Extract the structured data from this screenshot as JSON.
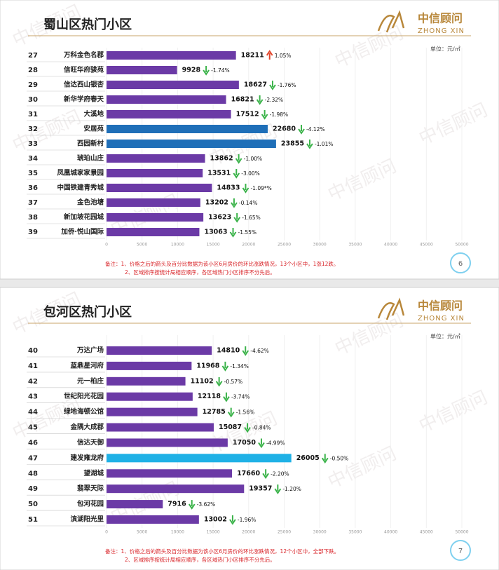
{
  "chart_data": [
    {
      "type": "bar",
      "title": "蜀山区热门小区",
      "logo": "中信顾问",
      "logo_sub": "ZHONG XIN",
      "watermark": "中信顾问",
      "unit": "单位：元/㎡",
      "ranks": [
        27,
        28,
        29,
        30,
        31,
        32,
        33,
        34,
        35,
        36,
        37,
        38,
        39
      ],
      "categories": [
        "万科金色名郡",
        "信旺华府骏苑",
        "信达西山银杏",
        "新华学府春天",
        "大溪地",
        "安居苑",
        "西园新村",
        "琥珀山庄",
        "凤凰城家家景园",
        "中国铁建青秀城",
        "金色池塘",
        "新加坡花园城",
        "加侨·悦山国际"
      ],
      "values": [
        18211,
        9928,
        18627,
        16821,
        17512,
        22680,
        23855,
        13862,
        13531,
        14833,
        13202,
        13623,
        13063
      ],
      "colors": [
        "#6b3aa6",
        "#6b3aa6",
        "#6b3aa6",
        "#6b3aa6",
        "#6b3aa6",
        "#1f6fb8",
        "#1f6fb8",
        "#6b3aa6",
        "#6b3aa6",
        "#6b3aa6",
        "#6b3aa6",
        "#6b3aa6",
        "#6b3aa6"
      ],
      "changes": [
        1.05,
        -1.74,
        -1.76,
        -2.32,
        -1.98,
        -4.12,
        -1.01,
        -1.0,
        -3.0,
        -1.09,
        -0.14,
        -1.65,
        -1.55
      ],
      "change_labels": [
        "1.05%",
        "-1.74%",
        "-1.76%",
        "-2.32%",
        "-1.98%",
        "-4.12%",
        "-1.01%",
        "-1.00%",
        "-3.00%",
        "-1.09*%",
        "-0.14%",
        "-1.65%",
        "-1.55%"
      ],
      "xlim": [
        0,
        50000
      ],
      "xticks": [
        0,
        5000,
        10000,
        15000,
        20000,
        25000,
        30000,
        35000,
        40000,
        45000,
        50000
      ],
      "notes": [
        "备注：1、价格之后的箭头及百分比数据为该小区6月房价的环比涨跌情况，13个小区中，1涨12跌。",
        "2、区域排序按统计局相应顺序，各区域热门小区排序不分先后。"
      ],
      "page": 6
    },
    {
      "type": "bar",
      "title": "包河区热门小区",
      "logo": "中信顾问",
      "logo_sub": "ZHONG XIN",
      "watermark": "中信顾问",
      "unit": "单位：元/㎡",
      "ranks": [
        40,
        41,
        42,
        43,
        44,
        45,
        46,
        47,
        48,
        49,
        50,
        51
      ],
      "categories": [
        "万达广场",
        "蓝鼎星河府",
        "元一柏庄",
        "世纪阳光花园",
        "绿地海顿公馆",
        "金隅大成郡",
        "信达天御",
        "建发雍龙府",
        "望湖城",
        "翡翠天际",
        "包河花园",
        "滨湖阳光里"
      ],
      "values": [
        14810,
        11968,
        11102,
        12118,
        12785,
        15087,
        17050,
        26005,
        17660,
        19357,
        7916,
        13002
      ],
      "colors": [
        "#6b3aa6",
        "#6b3aa6",
        "#6b3aa6",
        "#6b3aa6",
        "#6b3aa6",
        "#6b3aa6",
        "#6b3aa6",
        "#1fb1e6",
        "#6b3aa6",
        "#6b3aa6",
        "#6b3aa6",
        "#6b3aa6"
      ],
      "changes": [
        -4.62,
        -1.34,
        -0.57,
        -3.74,
        -1.56,
        -0.84,
        -4.99,
        -0.5,
        -2.2,
        -1.2,
        -3.62,
        -1.96
      ],
      "change_labels": [
        "-4.62%",
        "-1.34%",
        "-0.57%",
        "-3.74%",
        "-1.56%",
        "-0.84%",
        "-4.99%",
        "-0.50%",
        "-2.20%",
        "-1.20%",
        "-3.62%",
        "-1.96%"
      ],
      "xlim": [
        0,
        50000
      ],
      "xticks": [
        0,
        5000,
        10000,
        15000,
        20000,
        25000,
        30000,
        35000,
        40000,
        45000,
        50000
      ],
      "notes": [
        "备注：1、价格之后的箭头及百分比数据为该小区6月房价的环比涨跌情况，12个小区中，全部下跌。",
        "2、区域排序按统计局相应顺序，各区域热门小区排序不分先后。"
      ],
      "page": 7
    }
  ]
}
